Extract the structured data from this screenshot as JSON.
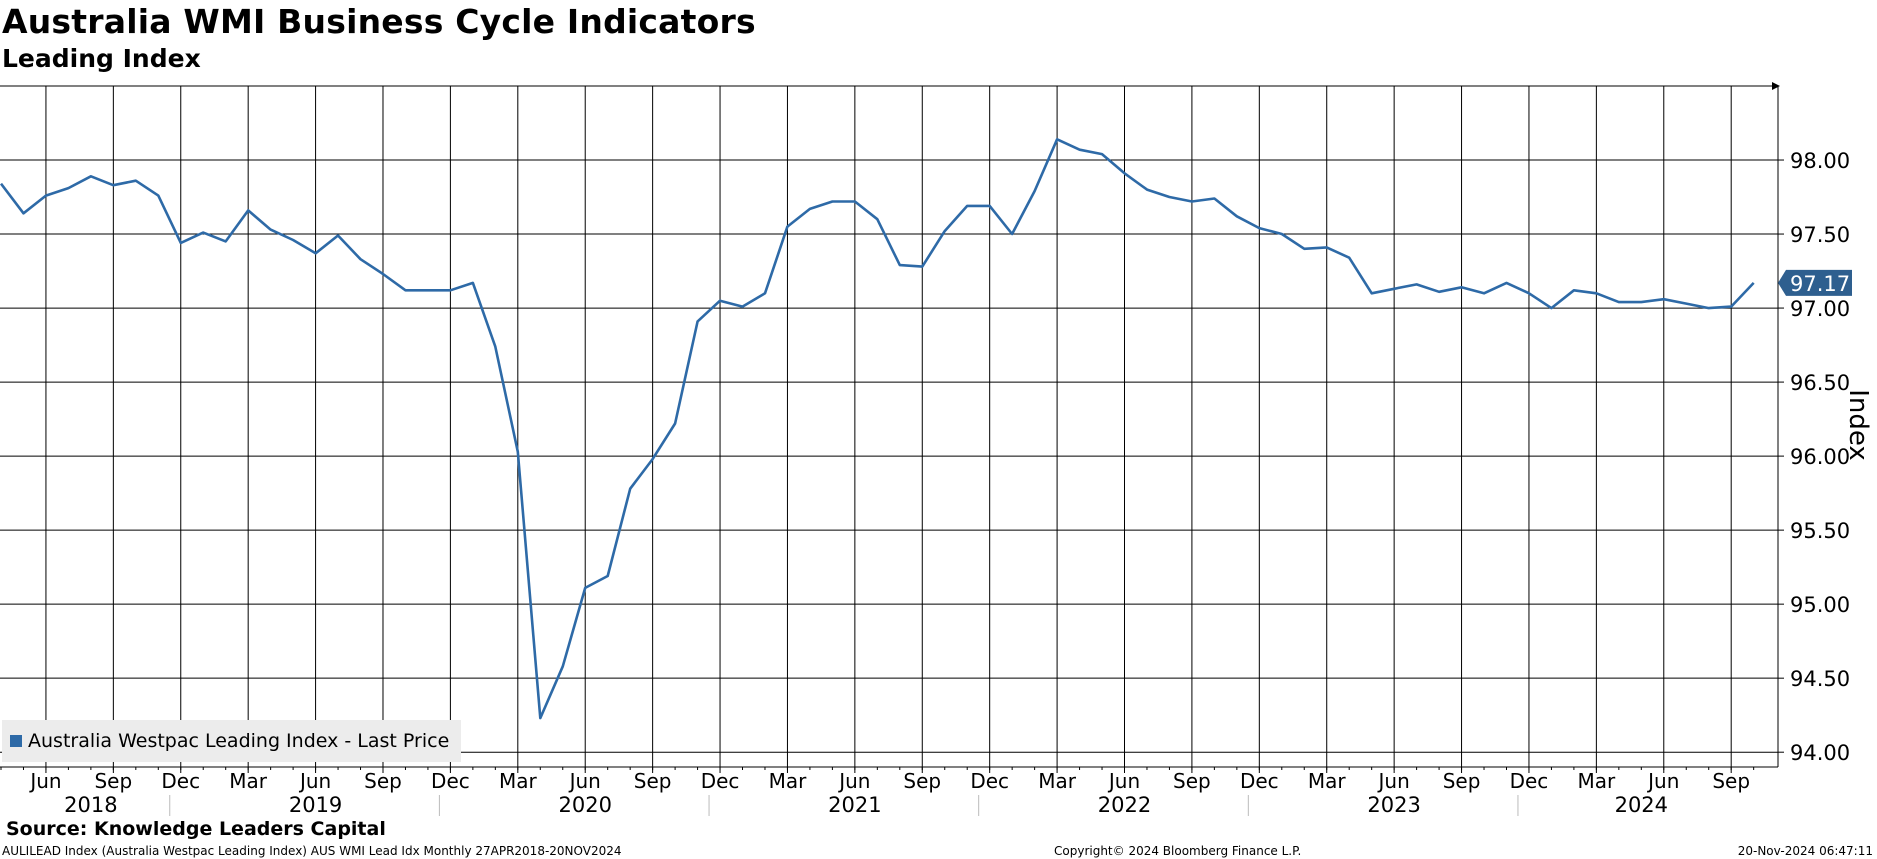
{
  "header": {
    "title": "Australia WMI Business Cycle Indicators",
    "subtitle": "Leading Index"
  },
  "legend": {
    "label": "Australia Westpac Leading Index - Last Price"
  },
  "footer": {
    "source": "Source: Knowledge Leaders Capital",
    "index_info": "AULILEAD Index (Australia Westpac Leading Index) AUS WMI Lead Idx  Monthly 27APR2018-20NOV2024",
    "copyright": "Copyright© 2024 Bloomberg Finance L.P.",
    "timestamp": "20-Nov-2024 06:47:11"
  },
  "chart_data": {
    "type": "line",
    "title": "Australia WMI Business Cycle Indicators",
    "subtitle": "Leading Index",
    "ylabel": "Index",
    "xlabel": "",
    "ylim": [
      93.9,
      98.5
    ],
    "yticks": [
      94.0,
      94.5,
      95.0,
      95.5,
      96.0,
      96.5,
      97.0,
      97.5,
      98.0
    ],
    "ytick_labels": [
      "94.00",
      "94.50",
      "95.00",
      "95.50",
      "96.00",
      "96.50",
      "97.00",
      "97.50",
      "98.00"
    ],
    "grid": true,
    "last_value_label": "97.17",
    "line_color": "#2e6aa7",
    "x_month_ticks": [
      {
        "month": 2,
        "label": "Jun"
      },
      {
        "month": 5,
        "label": "Sep"
      },
      {
        "month": 8,
        "label": "Dec"
      },
      {
        "month": 11,
        "label": "Mar"
      },
      {
        "month": 14,
        "label": "Jun"
      },
      {
        "month": 17,
        "label": "Sep"
      },
      {
        "month": 20,
        "label": "Dec"
      },
      {
        "month": 23,
        "label": "Mar"
      },
      {
        "month": 26,
        "label": "Jun"
      },
      {
        "month": 29,
        "label": "Sep"
      },
      {
        "month": 32,
        "label": "Dec"
      },
      {
        "month": 35,
        "label": "Mar"
      },
      {
        "month": 38,
        "label": "Jun"
      },
      {
        "month": 41,
        "label": "Sep"
      },
      {
        "month": 44,
        "label": "Dec"
      },
      {
        "month": 47,
        "label": "Mar"
      },
      {
        "month": 50,
        "label": "Jun"
      },
      {
        "month": 53,
        "label": "Sep"
      },
      {
        "month": 56,
        "label": "Dec"
      },
      {
        "month": 59,
        "label": "Mar"
      },
      {
        "month": 62,
        "label": "Jun"
      },
      {
        "month": 65,
        "label": "Sep"
      },
      {
        "month": 68,
        "label": "Dec"
      },
      {
        "month": 71,
        "label": "Mar"
      },
      {
        "month": 74,
        "label": "Jun"
      },
      {
        "month": 77,
        "label": "Sep"
      }
    ],
    "years": [
      {
        "label": "2018",
        "start": 0,
        "end": 8
      },
      {
        "label": "2019",
        "start": 8,
        "end": 20
      },
      {
        "label": "2020",
        "start": 20,
        "end": 32
      },
      {
        "label": "2021",
        "start": 32,
        "end": 44
      },
      {
        "label": "2022",
        "start": 44,
        "end": 56
      },
      {
        "label": "2023",
        "start": 56,
        "end": 68
      },
      {
        "label": "2024",
        "start": 68,
        "end": 79
      }
    ],
    "series": [
      {
        "name": "Australia Westpac Leading Index - Last Price",
        "x": [
          0,
          1,
          2,
          3,
          4,
          5,
          6,
          7,
          8,
          9,
          10,
          11,
          12,
          13,
          14,
          15,
          16,
          17,
          18,
          19,
          20,
          21,
          22,
          23,
          24,
          25,
          26,
          27,
          28,
          29,
          30,
          31,
          32,
          33,
          34,
          35,
          36,
          37,
          38,
          39,
          40,
          41,
          42,
          43,
          44,
          45,
          46,
          47,
          48,
          49,
          50,
          51,
          52,
          53,
          54,
          55,
          56,
          57,
          58,
          59,
          60,
          61,
          62,
          63,
          64,
          65,
          66,
          67,
          68,
          69,
          70,
          71,
          72,
          73,
          74,
          75,
          76,
          77,
          78
        ],
        "values": [
          97.84,
          97.64,
          97.76,
          97.81,
          97.89,
          97.83,
          97.86,
          97.76,
          97.44,
          97.51,
          97.45,
          97.66,
          97.53,
          97.46,
          97.37,
          97.49,
          97.33,
          97.23,
          97.12,
          97.12,
          97.12,
          97.17,
          96.74,
          96.03,
          94.23,
          94.58,
          95.11,
          95.19,
          95.78,
          95.98,
          96.22,
          96.91,
          97.05,
          97.01,
          97.1,
          97.55,
          97.67,
          97.72,
          97.72,
          97.6,
          97.29,
          97.28,
          97.52,
          97.69,
          97.69,
          97.5,
          97.79,
          98.14,
          98.07,
          98.04,
          97.91,
          97.8,
          97.75,
          97.72,
          97.74,
          97.62,
          97.54,
          97.5,
          97.4,
          97.41,
          97.34,
          97.1,
          97.13,
          97.16,
          97.11,
          97.14,
          97.1,
          97.17,
          97.1,
          97.0,
          97.12,
          97.1,
          97.04,
          97.04,
          97.06,
          97.03,
          97.0,
          97.01,
          97.17
        ]
      }
    ]
  }
}
